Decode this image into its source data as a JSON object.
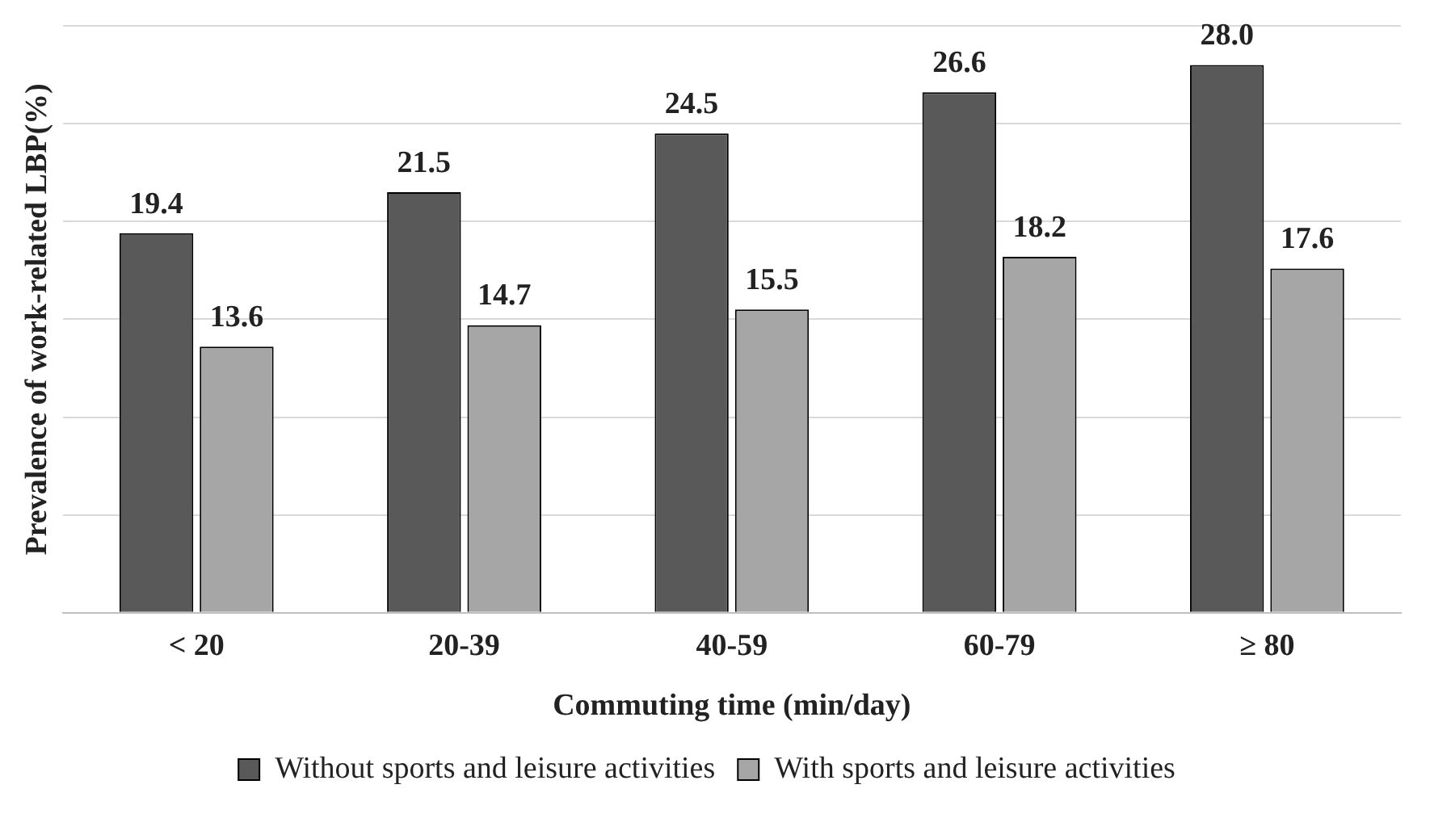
{
  "chart_data": {
    "type": "bar",
    "xlabel": "Commuting time (min/day)",
    "ylabel": "Prevalence of work-related LBP(%)",
    "categories": [
      "< 20",
      "20-39",
      "40-59",
      "60-79",
      "≥ 80"
    ],
    "series": [
      {
        "name": "Without sports and leisure activities",
        "color": "#595959",
        "values": [
          19.4,
          21.5,
          24.5,
          26.6,
          28.0
        ],
        "value_labels": [
          "19.4",
          "21.5",
          "24.5",
          "26.6",
          "28.0"
        ]
      },
      {
        "name": "With sports and leisure activities",
        "color": "#a6a6a6",
        "values": [
          13.6,
          14.7,
          15.5,
          18.2,
          17.6
        ],
        "value_labels": [
          "13.6",
          "14.7",
          "15.5",
          "18.2",
          "17.6"
        ]
      }
    ],
    "ylim": [
      0,
      30
    ],
    "yticks": [
      {
        "value": 0,
        "label": null
      },
      {
        "value": 5,
        "label": null
      },
      {
        "value": 10,
        "label": null
      },
      {
        "value": 15,
        "label": null
      },
      {
        "value": 20,
        "label": null
      },
      {
        "value": 25,
        "label": null
      },
      {
        "value": 30,
        "label": null
      }
    ],
    "grid": "y",
    "tick_labels": "x",
    "legend": "bottom"
  }
}
